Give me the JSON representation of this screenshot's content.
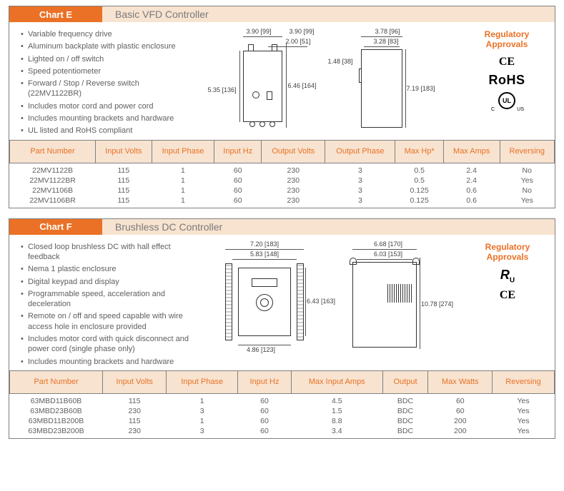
{
  "chartE": {
    "label": "Chart E",
    "title": "Basic VFD Controller",
    "bullets": [
      "Variable frequency drive",
      "Aluminum backplate with plastic enclosure",
      "Lighted on / off switch",
      "Speed potentiometer",
      "Forward / Stop / Reverse switch (22MV1122BR)",
      "Includes motor cord and power cord",
      "Includes mounting brackets and hardware",
      "UL listed and RoHS compliant"
    ],
    "approvals_title": "Regulatory\nApprovals",
    "marks": [
      "CE",
      "RoHS",
      "cULus"
    ],
    "dims": {
      "front_w": "3.90 [99]",
      "front_w2": "3.90 [99]",
      "front_inner": "2.00 [51]",
      "front_h1": "5.35 [136]",
      "front_h2": "6.46 [164]",
      "side_w": "3.78 [96]",
      "side_w2": "3.28 [83]",
      "side_tab": "1.48 [38]",
      "side_h": "7.19 [183]"
    },
    "columns": [
      "Part Number",
      "Input Volts",
      "Input Phase",
      "Input Hz",
      "Output Volts",
      "Output Phase",
      "Max Hp*",
      "Max Amps",
      "Reversing"
    ],
    "rows": [
      [
        "22MV1122B",
        "115",
        "1",
        "60",
        "230",
        "3",
        "0.5",
        "2.4",
        "No"
      ],
      [
        "22MV1122BR",
        "115",
        "1",
        "60",
        "230",
        "3",
        "0.5",
        "2.4",
        "Yes"
      ],
      [
        "22MV1106B",
        "115",
        "1",
        "60",
        "230",
        "3",
        "0.125",
        "0.6",
        "No"
      ],
      [
        "22MV1106BR",
        "115",
        "1",
        "60",
        "230",
        "3",
        "0.125",
        "0.6",
        "Yes"
      ]
    ],
    "colors": {
      "header_bg": "#f7e3d0",
      "accent": "#ea7125",
      "border": "#808080",
      "text": "#5f5f5f"
    }
  },
  "chartF": {
    "label": "Chart F",
    "title": "Brushless DC Controller",
    "bullets": [
      "Closed loop brushless DC with hall effect feedback",
      "Nema 1 plastic enclosure",
      "Digital keypad and display",
      "Programmable speed, acceleration and deceleration",
      "Remote on / off and speed capable with wire access hole in enclosure provided",
      "Includes motor cord with quick disconnect and power cord (single phase only)",
      "Includes mounting brackets and hardware"
    ],
    "approvals_title": "Regulatory\nApprovals",
    "marks": [
      "RU",
      "CE"
    ],
    "dims": {
      "front_outer_w": "7.20 [183]",
      "front_inner_w": "5.83 [148]",
      "front_h": "6.43 [163]",
      "front_base": "4.86 [123]",
      "side_outer_w": "6.68 [170]",
      "side_inner_w": "6.03 [153]",
      "side_h": "10.78 [274]"
    },
    "columns": [
      "Part Number",
      "Input Volts",
      "Input Phase",
      "Input Hz",
      "Max Input Amps",
      "Output",
      "Max Watts",
      "Reversing"
    ],
    "rows": [
      [
        "63MBD11B60B",
        "115",
        "1",
        "60",
        "4.5",
        "BDC",
        "60",
        "Yes"
      ],
      [
        "63MBD23B60B",
        "230",
        "3",
        "60",
        "1.5",
        "BDC",
        "60",
        "Yes"
      ],
      [
        "63MBD11B200B",
        "115",
        "1",
        "60",
        "8.8",
        "BDC",
        "200",
        "Yes"
      ],
      [
        "63MBD23B200B",
        "230",
        "3",
        "60",
        "3.4",
        "BDC",
        "200",
        "Yes"
      ]
    ]
  }
}
